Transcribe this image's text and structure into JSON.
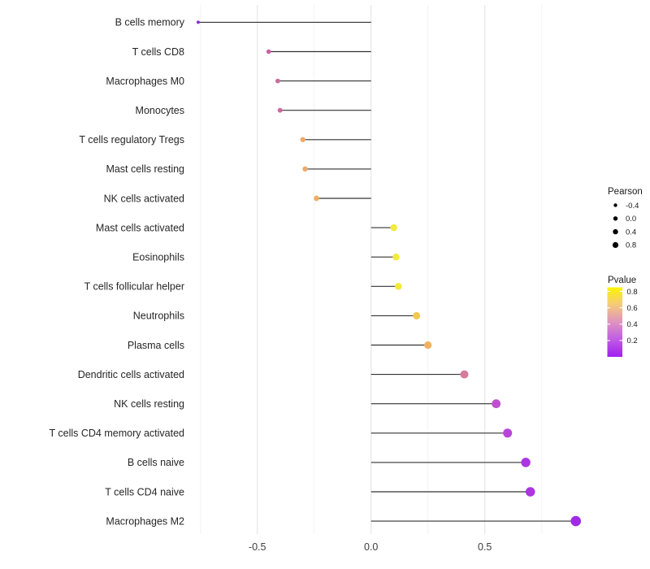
{
  "chart_data": {
    "type": "lollipop",
    "title": "",
    "xlabel": "",
    "ylabel": "",
    "categories": [
      "B cells memory",
      "T cells CD8",
      "Macrophages M0",
      "Monocytes",
      "T cells regulatory  Tregs",
      "Mast cells resting",
      "NK cells activated",
      "Mast cells activated",
      "Eosinophils",
      "T cells follicular helper",
      "Neutrophils",
      "Plasma cells",
      "Dendritic cells activated",
      "NK cells resting",
      "T cells CD4 memory activated",
      "B cells naive",
      "T cells CD4 naive",
      "Macrophages M2"
    ],
    "series": [
      {
        "name": "Pearson",
        "values": [
          -0.76,
          -0.45,
          -0.41,
          -0.4,
          -0.3,
          -0.29,
          -0.24,
          0.1,
          0.11,
          0.12,
          0.2,
          0.25,
          0.41,
          0.55,
          0.6,
          0.68,
          0.7,
          0.9
        ]
      }
    ],
    "point_colors": [
      "#8a2be0",
      "#c9609f",
      "#cd6b9f",
      "#cc699e",
      "#edaa6c",
      "#edaa6c",
      "#eeae67",
      "#f3ea3c",
      "#f3ea3c",
      "#f3e83e",
      "#f2c94e",
      "#f0b261",
      "#d67b9e",
      "#c04fd0",
      "#b845da",
      "#ab36e2",
      "#ab36e2",
      "#a02ae8"
    ],
    "x_axis": {
      "tick_values": [
        -0.5,
        0.0,
        0.5
      ],
      "tick_labels": [
        "-0.5",
        "0.0",
        "0.5"
      ],
      "minor_gridlines": [
        -0.75,
        -0.25,
        0.25,
        0.75
      ],
      "range": [
        -0.85,
        1.0
      ],
      "grid": "on"
    },
    "legend_position": "right",
    "legends": {
      "size": {
        "title": "Pearson",
        "labels": [
          "-0.4",
          "0.0",
          "0.4",
          "0.8"
        ],
        "values": [
          -0.4,
          0.0,
          0.4,
          0.8
        ],
        "key_color": "#000000"
      },
      "color": {
        "title": "Pvalue",
        "tick_labels": [
          "0.8",
          "0.6",
          "0.4",
          "0.2"
        ],
        "tick_values": [
          0.8,
          0.6,
          0.4,
          0.2
        ],
        "bar_range": [
          0.85,
          0.0
        ],
        "gradient_stops": [
          {
            "offset": "0%",
            "color": "#fdf403"
          },
          {
            "offset": "25%",
            "color": "#f4c97b"
          },
          {
            "offset": "50%",
            "color": "#de93c0"
          },
          {
            "offset": "75%",
            "color": "#c05ce4"
          },
          {
            "offset": "100%",
            "color": "#a01ef0"
          }
        ]
      }
    },
    "style_colors": {
      "segment": "#333333",
      "grid_major": "#e5e5e5",
      "grid_minor": "#f2f2f2",
      "category_text": "#262626",
      "axis_tick_text": "#404040",
      "legend_text": "#1a1a1a",
      "background": "#ffffff"
    }
  }
}
